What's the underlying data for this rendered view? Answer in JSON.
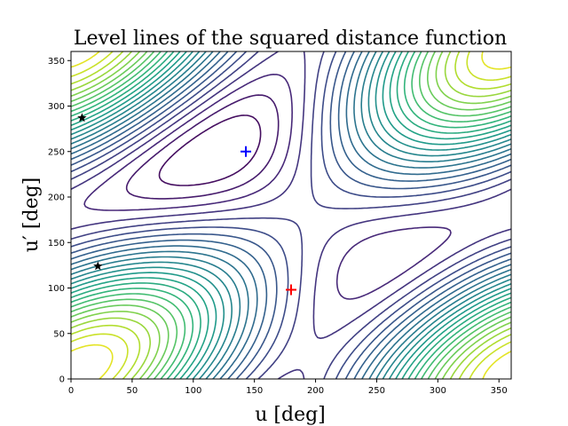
{
  "chart_data": {
    "type": "contour",
    "title": "Level lines of the squared distance function",
    "xlabel": "u [deg]",
    "ylabel": "u′ [deg]",
    "xlim": [
      0,
      360
    ],
    "ylim": [
      0,
      360
    ],
    "x_ticks": [
      0,
      50,
      100,
      150,
      200,
      250,
      300,
      350
    ],
    "y_ticks": [
      0,
      50,
      100,
      150,
      200,
      250,
      300,
      350
    ],
    "grid": false,
    "colormap": "viridis",
    "markers": [
      {
        "type": "plus",
        "color": "#ff0000",
        "x": 180,
        "y": 98
      },
      {
        "type": "plus",
        "color": "#0000ff",
        "x": 143,
        "y": 250
      },
      {
        "type": "star",
        "color": "#000000",
        "x": 9,
        "y": 287
      },
      {
        "type": "star",
        "color": "#000000",
        "x": 22,
        "y": 124
      }
    ]
  }
}
